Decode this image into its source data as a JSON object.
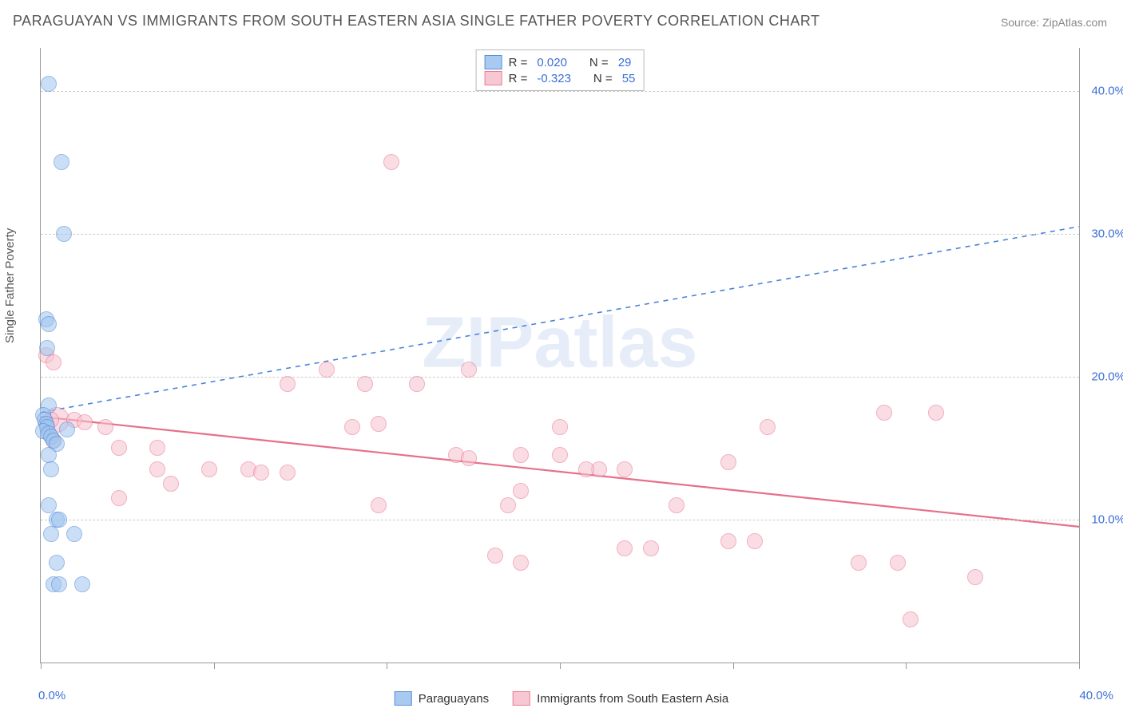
{
  "title": "PARAGUAYAN VS IMMIGRANTS FROM SOUTH EASTERN ASIA SINGLE FATHER POVERTY CORRELATION CHART",
  "source": "Source: ZipAtlas.com",
  "watermark": "ZIPatlas",
  "ylabel": "Single Father Poverty",
  "chart": {
    "type": "scatter",
    "background_color": "#ffffff",
    "grid_color": "#cccccc",
    "xlim": [
      0,
      40
    ],
    "ylim": [
      0,
      43
    ],
    "ytick_values": [
      10,
      20,
      30,
      40
    ],
    "ytick_labels": [
      "10.0%",
      "20.0%",
      "30.0%",
      "40.0%"
    ],
    "xtick_values": [
      0,
      6.67,
      13.33,
      20,
      26.67,
      33.33,
      40
    ],
    "xaxis_min_label": "0.0%",
    "xaxis_max_label": "40.0%",
    "marker_radius": 9,
    "marker_border_width": 1.4
  },
  "series_a": {
    "label": "Paraguayans",
    "name": "paraguayans",
    "fill_color": "#9fc5f0",
    "stroke_color": "#4a84d6",
    "fill_opacity": 0.55,
    "R": "0.020",
    "N": "29",
    "trend": {
      "x1": 0,
      "y1": 17.5,
      "x2": 40,
      "y2": 30.5,
      "color": "#4a84d6",
      "dash": "6,6",
      "width": 1.6
    },
    "points": [
      [
        0.3,
        40.5
      ],
      [
        0.8,
        35.0
      ],
      [
        0.9,
        30.0
      ],
      [
        0.2,
        24.0
      ],
      [
        0.3,
        23.7
      ],
      [
        0.25,
        22.0
      ],
      [
        0.3,
        18.0
      ],
      [
        0.1,
        17.3
      ],
      [
        0.15,
        17.0
      ],
      [
        0.2,
        16.7
      ],
      [
        0.25,
        16.5
      ],
      [
        0.1,
        16.2
      ],
      [
        0.3,
        16.0
      ],
      [
        0.4,
        15.8
      ],
      [
        0.5,
        15.5
      ],
      [
        0.6,
        15.3
      ],
      [
        1.0,
        16.3
      ],
      [
        0.3,
        14.5
      ],
      [
        0.4,
        13.5
      ],
      [
        0.3,
        11.0
      ],
      [
        0.6,
        10.0
      ],
      [
        0.7,
        10.0
      ],
      [
        0.4,
        9.0
      ],
      [
        1.3,
        9.0
      ],
      [
        0.6,
        7.0
      ],
      [
        0.5,
        5.5
      ],
      [
        0.7,
        5.5
      ],
      [
        1.6,
        5.5
      ]
    ]
  },
  "series_b": {
    "label": "Immigrants from South Eastern Asia",
    "name": "immigrants-se-asia",
    "fill_color": "#f7c3cf",
    "stroke_color": "#e67089",
    "fill_opacity": 0.55,
    "R": "-0.323",
    "N": "55",
    "trend": {
      "x1": 0,
      "y1": 17.2,
      "x2": 40,
      "y2": 9.5,
      "color": "#e67089",
      "dash": "",
      "width": 2.2
    },
    "points": [
      [
        13.5,
        35.0
      ],
      [
        0.2,
        21.5
      ],
      [
        0.5,
        21.0
      ],
      [
        11.0,
        20.5
      ],
      [
        16.5,
        20.5
      ],
      [
        9.5,
        19.5
      ],
      [
        12.5,
        19.5
      ],
      [
        14.5,
        19.5
      ],
      [
        0.4,
        17.0
      ],
      [
        1.3,
        17.0
      ],
      [
        1.7,
        16.8
      ],
      [
        2.5,
        16.5
      ],
      [
        32.5,
        17.5
      ],
      [
        34.5,
        17.5
      ],
      [
        12.0,
        16.5
      ],
      [
        13.0,
        16.7
      ],
      [
        20.0,
        16.5
      ],
      [
        28.0,
        16.5
      ],
      [
        0.5,
        15.5
      ],
      [
        3.0,
        15.0
      ],
      [
        4.5,
        15.0
      ],
      [
        16.0,
        14.5
      ],
      [
        16.5,
        14.3
      ],
      [
        18.5,
        14.5
      ],
      [
        20.0,
        14.5
      ],
      [
        4.5,
        13.5
      ],
      [
        6.5,
        13.5
      ],
      [
        8.0,
        13.5
      ],
      [
        8.5,
        13.3
      ],
      [
        9.5,
        13.3
      ],
      [
        21.5,
        13.5
      ],
      [
        22.5,
        13.5
      ],
      [
        26.5,
        14.0
      ],
      [
        5.0,
        12.5
      ],
      [
        18.5,
        12.0
      ],
      [
        3.0,
        11.5
      ],
      [
        13.0,
        11.0
      ],
      [
        18.0,
        11.0
      ],
      [
        21.0,
        13.5
      ],
      [
        24.5,
        11.0
      ],
      [
        26.5,
        8.5
      ],
      [
        27.5,
        8.5
      ],
      [
        22.5,
        8.0
      ],
      [
        23.5,
        8.0
      ],
      [
        17.5,
        7.5
      ],
      [
        18.5,
        7.0
      ],
      [
        31.5,
        7.0
      ],
      [
        33.0,
        7.0
      ],
      [
        36.0,
        6.0
      ],
      [
        33.5,
        3.0
      ]
    ],
    "big_point": {
      "x": 0.6,
      "y": 17.0,
      "r": 15
    }
  },
  "legend": {
    "R_prefix": "R =",
    "N_prefix": "N ="
  }
}
